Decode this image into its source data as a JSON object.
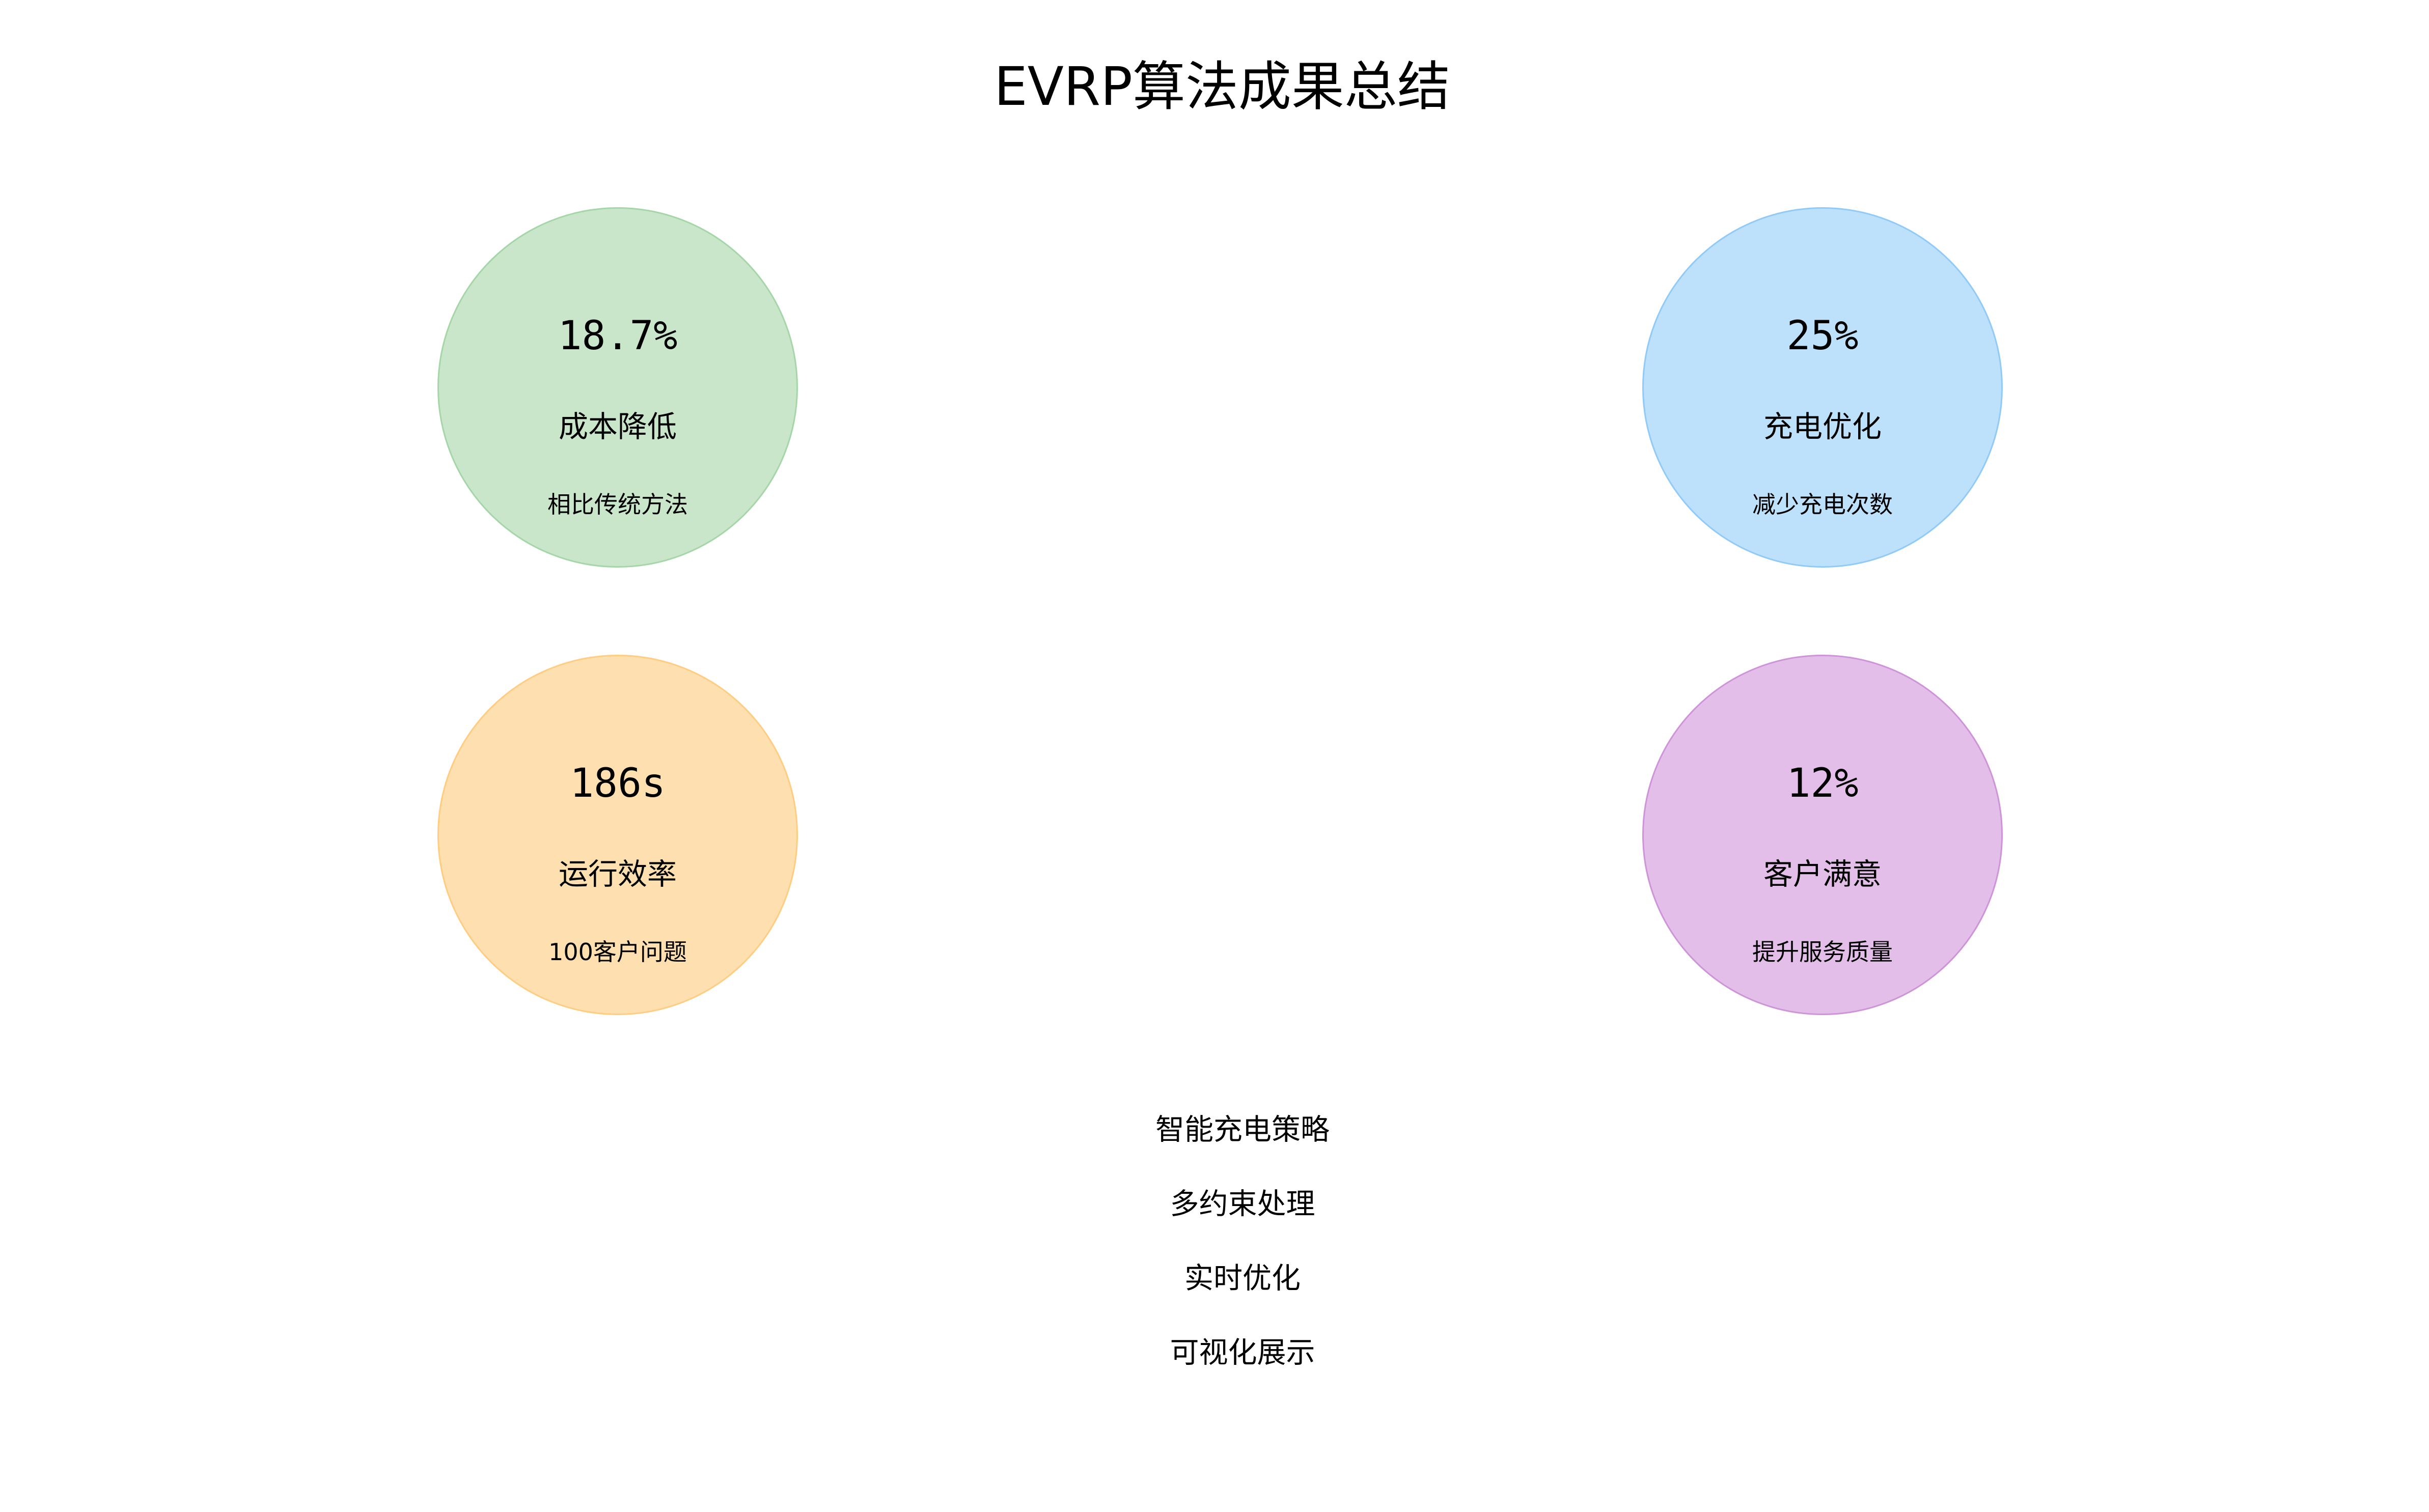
{
  "title": "EVRP算法成果总结",
  "metrics": [
    {
      "value": "18.7%",
      "label": "成本降低",
      "sub": "相比传统方法",
      "color": "#c9e6cb"
    },
    {
      "value": "25%",
      "label": "充电优化",
      "sub": "减少充电次数",
      "color": "#bde0fb"
    },
    {
      "value": "186s",
      "label": "运行效率",
      "sub": "100客户问题",
      "color": "#fedfb0"
    },
    {
      "value": "12%",
      "label": "客户满意",
      "sub": "提升服务质量",
      "color": "#e2bee9"
    }
  ],
  "features": [
    "智能充电策略",
    "多约束处理",
    "实时优化",
    "可视化展示"
  ]
}
